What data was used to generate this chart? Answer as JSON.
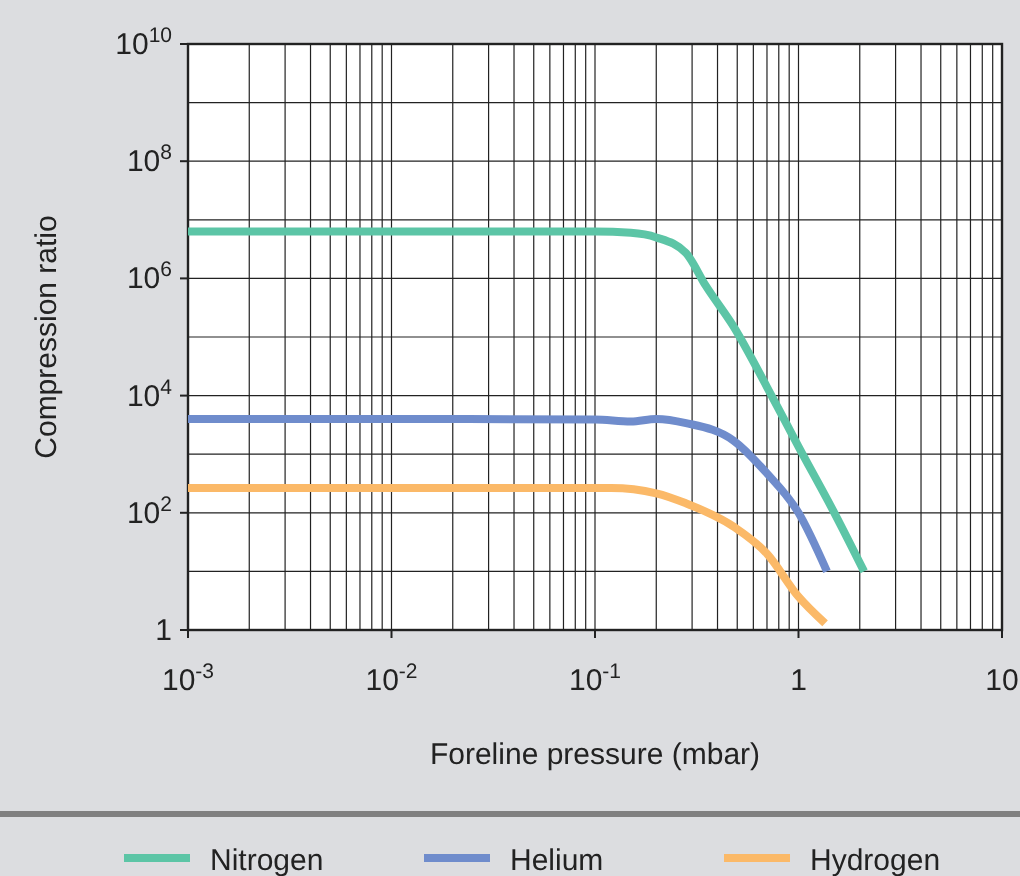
{
  "chart_data": {
    "type": "line",
    "xlabel": "Foreline pressure (mbar)",
    "ylabel": "Compression ratio",
    "log": "xy",
    "grid": true,
    "legend": "bottom",
    "marker": "none",
    "line_style": "solid",
    "xlim": [
      0.001,
      10
    ],
    "ylim": [
      1,
      10000000000
    ],
    "xticks": [
      {
        "value": 0.001,
        "label": "10$^{-3}$"
      },
      {
        "value": 0.002,
        "label": null
      },
      {
        "value": 0.003,
        "label": null
      },
      {
        "value": 0.004,
        "label": null
      },
      {
        "value": 0.005,
        "label": null
      },
      {
        "value": 0.006,
        "label": null
      },
      {
        "value": 0.007,
        "label": null
      },
      {
        "value": 0.008,
        "label": null
      },
      {
        "value": 0.009,
        "label": null
      },
      {
        "value": 0.01,
        "label": "10$^{-2}$"
      },
      {
        "value": 0.02,
        "label": null
      },
      {
        "value": 0.03,
        "label": null
      },
      {
        "value": 0.04,
        "label": null
      },
      {
        "value": 0.05,
        "label": null
      },
      {
        "value": 0.06,
        "label": null
      },
      {
        "value": 0.07,
        "label": null
      },
      {
        "value": 0.08,
        "label": null
      },
      {
        "value": 0.09,
        "label": null
      },
      {
        "value": 0.1,
        "label": "10$^{-1}$"
      },
      {
        "value": 0.2,
        "label": null
      },
      {
        "value": 0.3,
        "label": null
      },
      {
        "value": 0.4,
        "label": null
      },
      {
        "value": 0.5,
        "label": null
      },
      {
        "value": 0.6,
        "label": null
      },
      {
        "value": 0.7,
        "label": null
      },
      {
        "value": 0.8,
        "label": null
      },
      {
        "value": 0.9,
        "label": null
      },
      {
        "value": 1,
        "label": "1"
      },
      {
        "value": 2,
        "label": null
      },
      {
        "value": 3,
        "label": null
      },
      {
        "value": 4,
        "label": null
      },
      {
        "value": 5,
        "label": null
      },
      {
        "value": 6,
        "label": null
      },
      {
        "value": 7,
        "label": null
      },
      {
        "value": 8,
        "label": null
      },
      {
        "value": 9,
        "label": null
      },
      {
        "value": 10,
        "label": "10"
      }
    ],
    "yticks": [
      {
        "value": 1,
        "label": "1"
      },
      {
        "value": 10,
        "label": null
      },
      {
        "value": 100,
        "label": "10$^{2}$"
      },
      {
        "value": 1000,
        "label": null
      },
      {
        "value": 10000,
        "label": "10$^{4}$"
      },
      {
        "value": 100000,
        "label": null
      },
      {
        "value": 1000000,
        "label": "10$^{6}$"
      },
      {
        "value": 10000000,
        "label": null
      },
      {
        "value": 100000000,
        "label": "10$^{8}$"
      },
      {
        "value": 1000000000,
        "label": null
      },
      {
        "value": 10000000000,
        "label": "10$^{10}$"
      }
    ],
    "series": [
      {
        "name": "Nitrogen",
        "color": "#5cc5a6",
        "x": [
          0.001,
          0.01,
          0.1,
          0.15,
          0.2,
          0.28,
          0.35,
          0.48,
          0.7,
          1,
          1.5,
          2.1
        ],
        "values": [
          6300000,
          6300000,
          6300000,
          6000000,
          5000000,
          2700000,
          750000,
          150000,
          14000,
          1350,
          100,
          10
        ]
      },
      {
        "name": "Helium",
        "color": "#6f8ccc",
        "x": [
          0.001,
          0.01,
          0.1,
          0.15,
          0.2,
          0.28,
          0.48,
          0.7,
          1,
          1.38
        ],
        "values": [
          4000,
          4000,
          3900,
          3600,
          4000,
          3400,
          1700,
          470,
          100,
          10
        ]
      },
      {
        "name": "Hydrogen",
        "color": "#fbb968",
        "x": [
          0.001,
          0.01,
          0.12,
          0.2,
          0.28,
          0.48,
          0.7,
          1,
          1.35
        ],
        "values": [
          265,
          265,
          265,
          215,
          145,
          58,
          20,
          3.7,
          1.3
        ]
      }
    ]
  }
}
